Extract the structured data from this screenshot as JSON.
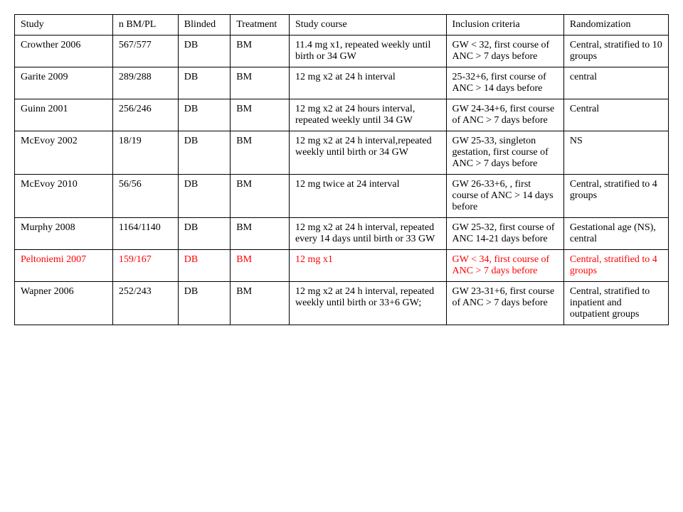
{
  "table": {
    "columns": [
      {
        "key": "study",
        "label": "Study"
      },
      {
        "key": "n",
        "label": "n BM/PL"
      },
      {
        "key": "blinded",
        "label": "Blinded"
      },
      {
        "key": "treatment",
        "label": "Treatment"
      },
      {
        "key": "course",
        "label": "Study course"
      },
      {
        "key": "inclusion",
        "label": "Inclusion criteria"
      },
      {
        "key": "randomization",
        "label": "Randomization"
      }
    ],
    "rows": [
      {
        "study": "Crowther 2006",
        "n": "567/577",
        "blinded": "DB",
        "treatment": "BM",
        "course": "11.4 mg x1, repeated weekly until birth or 34 GW",
        "inclusion": "GW < 32, first course of ANC > 7 days before",
        "randomization": "Central, stratified to 10 groups",
        "red": false
      },
      {
        "study": "Garite 2009",
        "n": "289/288",
        "blinded": "DB",
        "treatment": "BM",
        "course": "12 mg x2 at 24 h interval",
        "inclusion": "25-32+6, first course of ANC > 14 days before",
        "randomization": "central",
        "red": false
      },
      {
        "study": "Guinn 2001",
        "n": "256/246",
        "blinded": "DB",
        "treatment": "BM",
        "course": "12 mg x2 at 24 hours interval, repeated weekly until 34 GW",
        "inclusion": "GW 24-34+6, first course of ANC > 7 days before",
        "randomization": "Central",
        "red": false
      },
      {
        "study": "McEvoy 2002",
        "n": "18/19",
        "blinded": "DB",
        "treatment": "BM",
        "course": "12 mg x2 at 24 h interval,repeated weekly until birth or 34 GW",
        "inclusion": "GW 25-33, singleton gestation, first course of ANC > 7 days before",
        "randomization": "NS",
        "red": false
      },
      {
        "study": "McEvoy 2010",
        "n": "56/56",
        "blinded": "DB",
        "treatment": "BM",
        "course": "12 mg twice at 24 interval",
        "inclusion": "GW 26-33+6, , first course of ANC > 14 days before",
        "randomization": "Central, stratified to 4 groups",
        "red": false
      },
      {
        "study": "Murphy 2008",
        "n": "1164/1140",
        "blinded": "DB",
        "treatment": "BM",
        "course": "12 mg x2 at 24 h interval, repeated every 14 days until birth or 33 GW",
        "inclusion": "GW 25-32, first course of ANC 14-21 days before",
        "randomization": "Gestational age (NS), central",
        "red": false
      },
      {
        "study": "Peltoniemi 2007",
        "n": "159/167",
        "blinded": "DB",
        "treatment": "BM",
        "course": "12 mg x1",
        "inclusion": "GW < 34, first course of ANC > 7 days before",
        "randomization": "Central, stratified to 4 groups",
        "red": true
      },
      {
        "study": "Wapner 2006",
        "n": "252/243",
        "blinded": "DB",
        "treatment": "BM",
        "course": "12 mg x2 at 24 h interval, repeated weekly until birth or 33+6 GW;",
        "inclusion": "GW 23-31+6, first course of ANC > 7 days before",
        "randomization": "Central, stratified to inpatient and outpatient groups",
        "red": false
      }
    ]
  }
}
